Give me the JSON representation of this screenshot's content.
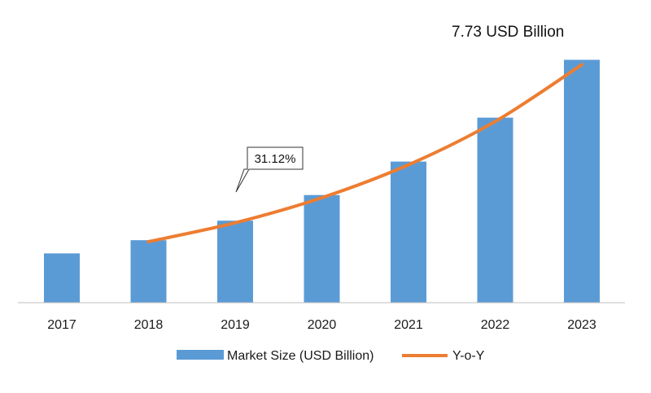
{
  "chart_data": {
    "type": "bar",
    "categories": [
      "2017",
      "2018",
      "2019",
      "2020",
      "2021",
      "2022",
      "2023"
    ],
    "series": [
      {
        "name": "Market Size (USD Billion)",
        "kind": "bar",
        "color": "#5b9bd5",
        "values": [
          2.02,
          2.56,
          3.36,
          4.41,
          5.78,
          7.58,
          9.95
        ]
      },
      {
        "name": "Y-o-Y",
        "kind": "line",
        "color": "#ed7d31",
        "values": [
          null,
          1.0,
          1.31,
          1.72,
          2.26,
          2.97,
          3.9
        ]
      }
    ],
    "annotations": {
      "top": "7.73 USD Billion",
      "callout": "31.12%"
    },
    "ylim": [
      0,
      12
    ],
    "grid": false,
    "legend_position": "bottom"
  },
  "colors": {
    "bar": "#5b9bd5",
    "line": "#ed7d31",
    "axis": "#bfbfbf"
  }
}
